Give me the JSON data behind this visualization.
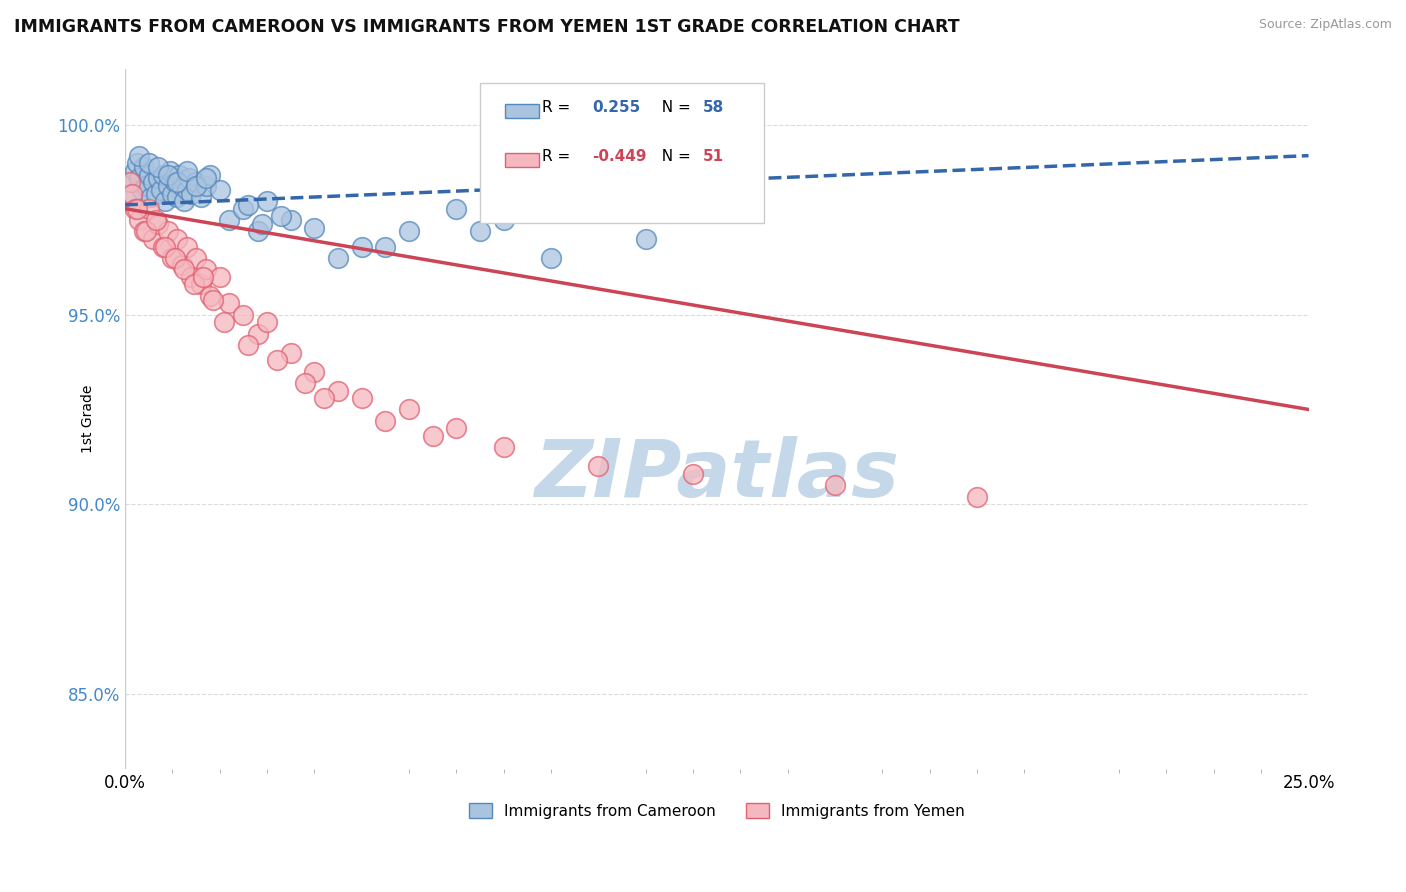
{
  "title": "IMMIGRANTS FROM CAMEROON VS IMMIGRANTS FROM YEMEN 1ST GRADE CORRELATION CHART",
  "source": "Source: ZipAtlas.com",
  "ylabel": "1st Grade",
  "xlim": [
    0.0,
    25.0
  ],
  "ylim": [
    83.0,
    101.5
  ],
  "blue_R": 0.255,
  "blue_N": 58,
  "pink_R": -0.449,
  "pink_N": 51,
  "blue_color": "#aac4e0",
  "pink_color": "#f5b8c0",
  "blue_edge_color": "#5588bb",
  "pink_edge_color": "#e06070",
  "blue_line_color": "#3366aa",
  "pink_line_color": "#cc4455",
  "watermark": "ZIPatlas",
  "watermark_color": "#c5d8ea",
  "legend_label_blue": "Immigrants from Cameroon",
  "legend_label_pink": "Immigrants from Yemen",
  "blue_scatter_x": [
    0.1,
    0.15,
    0.2,
    0.25,
    0.3,
    0.35,
    0.4,
    0.45,
    0.5,
    0.55,
    0.6,
    0.65,
    0.7,
    0.75,
    0.8,
    0.85,
    0.9,
    0.95,
    1.0,
    1.05,
    1.1,
    1.15,
    1.2,
    1.25,
    1.3,
    1.35,
    1.4,
    1.5,
    1.6,
    1.7,
    1.8,
    2.0,
    2.2,
    2.5,
    2.8,
    3.0,
    3.5,
    4.0,
    5.0,
    6.0,
    7.0,
    8.0,
    2.6,
    2.9,
    3.3,
    4.5,
    5.5,
    7.5,
    9.0,
    11.0,
    0.3,
    0.5,
    0.7,
    0.9,
    1.1,
    1.3,
    1.5,
    1.7
  ],
  "blue_scatter_y": [
    98.2,
    98.5,
    98.8,
    99.0,
    98.6,
    98.3,
    98.9,
    98.4,
    98.7,
    98.1,
    98.5,
    98.2,
    98.6,
    98.3,
    98.7,
    98.0,
    98.4,
    98.8,
    98.2,
    98.5,
    98.1,
    98.7,
    98.4,
    98.0,
    98.3,
    98.6,
    98.2,
    98.5,
    98.1,
    98.4,
    98.7,
    98.3,
    97.5,
    97.8,
    97.2,
    98.0,
    97.5,
    97.3,
    96.8,
    97.2,
    97.8,
    97.5,
    97.9,
    97.4,
    97.6,
    96.5,
    96.8,
    97.2,
    96.5,
    97.0,
    99.2,
    99.0,
    98.9,
    98.7,
    98.5,
    98.8,
    98.4,
    98.6
  ],
  "pink_scatter_x": [
    0.1,
    0.15,
    0.2,
    0.3,
    0.4,
    0.5,
    0.6,
    0.7,
    0.8,
    0.9,
    1.0,
    1.1,
    1.2,
    1.3,
    1.4,
    1.5,
    1.6,
    1.7,
    1.8,
    2.0,
    2.2,
    2.5,
    2.8,
    3.0,
    3.5,
    4.0,
    4.5,
    5.0,
    6.0,
    7.0,
    3.8,
    4.2,
    5.5,
    6.5,
    8.0,
    10.0,
    12.0,
    15.0,
    18.0,
    0.25,
    0.45,
    0.65,
    0.85,
    1.05,
    1.25,
    1.45,
    1.65,
    1.85,
    2.1,
    2.6,
    3.2
  ],
  "pink_scatter_y": [
    98.5,
    98.2,
    97.8,
    97.5,
    97.2,
    97.8,
    97.0,
    97.4,
    96.8,
    97.2,
    96.5,
    97.0,
    96.3,
    96.8,
    96.0,
    96.5,
    95.8,
    96.2,
    95.5,
    96.0,
    95.3,
    95.0,
    94.5,
    94.8,
    94.0,
    93.5,
    93.0,
    92.8,
    92.5,
    92.0,
    93.2,
    92.8,
    92.2,
    91.8,
    91.5,
    91.0,
    90.8,
    90.5,
    90.2,
    97.8,
    97.2,
    97.5,
    96.8,
    96.5,
    96.2,
    95.8,
    96.0,
    95.4,
    94.8,
    94.2,
    93.8
  ],
  "blue_trend_x": [
    0.0,
    25.0
  ],
  "blue_trend_y": [
    97.9,
    99.2
  ],
  "pink_trend_x": [
    0.0,
    25.0
  ],
  "pink_trend_y": [
    97.8,
    92.5
  ],
  "y_ticks": [
    85.0,
    90.0,
    95.0,
    100.0
  ],
  "y_tick_labels": [
    "85.0%",
    "90.0%",
    "95.0%",
    "100.0%"
  ],
  "figsize": [
    14.06,
    8.92
  ],
  "dpi": 100
}
